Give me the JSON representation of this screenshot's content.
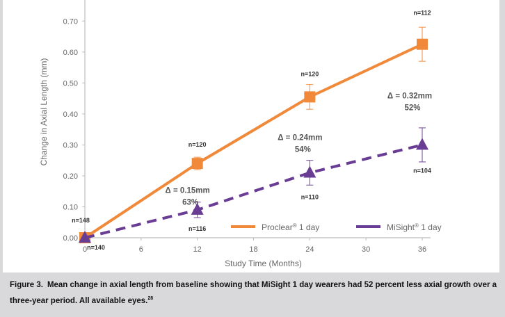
{
  "chart_data": {
    "type": "line",
    "title": "",
    "xlabel": "Study Time (Months)",
    "ylabel": "Change in Axial Length (mm)",
    "xlim": [
      0,
      36
    ],
    "ylim": [
      0,
      0.75
    ],
    "x_ticks": [
      "0",
      "6",
      "12",
      "18",
      "24",
      "30",
      "36"
    ],
    "x_tick_values": [
      0,
      6,
      12,
      18,
      24,
      30,
      36
    ],
    "y_ticks": [
      "0.00",
      "0.10",
      "0.20",
      "0.30",
      "0.40",
      "0.50",
      "0.60",
      "0.70"
    ],
    "y_tick_values": [
      0,
      0.1,
      0.2,
      0.3,
      0.4,
      0.5,
      0.6,
      0.7
    ],
    "legend_position": "bottom-right",
    "series": [
      {
        "name": "Proclear® 1 day",
        "legend_label": "Proclear",
        "legend_suffix": " 1 day",
        "color": "#f08a3a",
        "style": "solid",
        "marker": "square",
        "x": [
          0,
          12,
          24,
          36
        ],
        "values": [
          0.0,
          0.24,
          0.455,
          0.625
        ],
        "error": [
          0,
          0.02,
          0.04,
          0.055
        ],
        "n_labels": [
          "n=148",
          "n=120",
          "n=120",
          "n=112"
        ]
      },
      {
        "name": "MiSight® 1 day",
        "legend_label": "MiSight",
        "legend_suffix": " 1 day",
        "color": "#6a3d94",
        "style": "dashed",
        "marker": "triangle",
        "x": [
          0,
          12,
          24,
          36
        ],
        "values": [
          0.0,
          0.09,
          0.21,
          0.3
        ],
        "error": [
          0,
          0.025,
          0.04,
          0.055
        ],
        "n_labels": [
          "n=140",
          "n=116",
          "n=110",
          "n=104"
        ]
      }
    ],
    "annotations": [
      {
        "x": 12,
        "line1": "Δ = 0.15mm",
        "line2": "63%"
      },
      {
        "x": 24,
        "line1": "Δ = 0.24mm",
        "line2": "54%"
      },
      {
        "x": 36,
        "line1": "Δ = 0.32mm",
        "line2": "52%"
      }
    ]
  },
  "caption": {
    "label": "Figure 3.",
    "text": "Mean change in axial length from baseline showing that MiSight 1 day wearers had 52 percent less axial growth over a three-year period. All available eyes.",
    "superscript": "28"
  }
}
